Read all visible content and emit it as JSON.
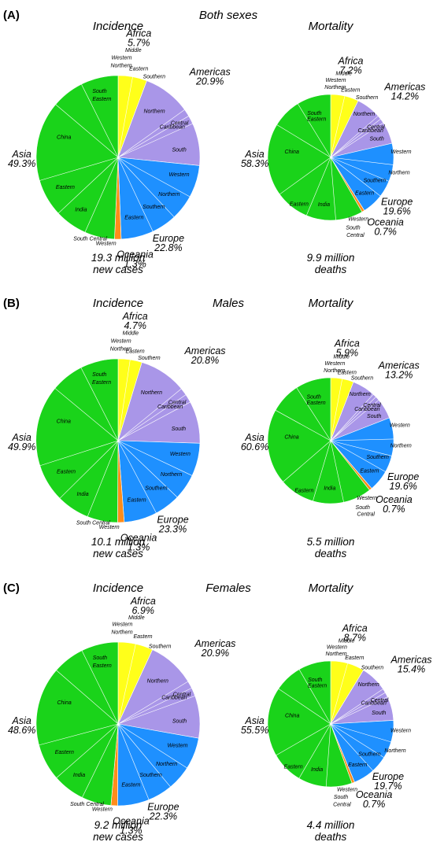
{
  "colors": {
    "Africa": "#ffff1a",
    "Americas": "#a996e8",
    "Europe": "#1e90ff",
    "Oceania": "#ff8c1a",
    "Asia": "#1ad31a"
  },
  "panels": [
    {
      "letter": "(A)",
      "title": "Both sexes"
    },
    {
      "letter": "(B)",
      "title": "Males"
    },
    {
      "letter": "(C)",
      "title": "Females"
    }
  ],
  "side_titles": {
    "incidence": "Incidence",
    "mortality": "Mortality"
  },
  "chart_data": [
    {
      "type": "pie",
      "panel": 0,
      "side": "incidence",
      "title": "Incidence",
      "total": [
        "19.3 million",
        "new cases"
      ],
      "slices": [
        {
          "region": "Africa",
          "value": 5.7
        },
        {
          "region": "Americas",
          "value": 20.9
        },
        {
          "region": "Europe",
          "value": 22.8
        },
        {
          "region": "Oceania",
          "value": 1.3
        },
        {
          "region": "Asia",
          "value": 49.3
        }
      ],
      "region_labels": [
        {
          "region": "Africa",
          "name": "Africa",
          "pct": "5.7%"
        },
        {
          "region": "Americas",
          "name": "Americas",
          "pct": "20.9%"
        },
        {
          "region": "Europe",
          "name": "Europe",
          "pct": "22.8%"
        },
        {
          "region": "Oceania",
          "name": "Oceania",
          "pct": "1.3%"
        },
        {
          "region": "Asia",
          "name": "Asia",
          "pct": "49.3%"
        }
      ],
      "subregions": [
        "Eastern",
        "Southern",
        "Northern",
        "Central",
        "Caribbean",
        "South",
        "Western",
        "Northern",
        "Southern",
        "Eastern",
        "Western",
        "South Central",
        "India",
        "Eastern",
        "China",
        "South",
        "Eastern",
        "Western",
        "Northern",
        "Middle"
      ]
    },
    {
      "type": "pie",
      "panel": 0,
      "side": "mortality",
      "title": "Mortality",
      "total": [
        "9.9 million",
        "deaths"
      ],
      "slices": [
        {
          "region": "Africa",
          "value": 7.2
        },
        {
          "region": "Americas",
          "value": 14.2
        },
        {
          "region": "Europe",
          "value": 19.6
        },
        {
          "region": "Oceania",
          "value": 0.7
        },
        {
          "region": "Asia",
          "value": 58.3
        }
      ],
      "region_labels": [
        {
          "region": "Africa",
          "name": "Africa",
          "pct": "7.2%"
        },
        {
          "region": "Americas",
          "name": "Americas",
          "pct": "14.2%"
        },
        {
          "region": "Europe",
          "name": "Europe",
          "pct": "19.6%"
        },
        {
          "region": "Oceania",
          "name": "Oceania",
          "pct": "0.7%"
        },
        {
          "region": "Asia",
          "name": "Asia",
          "pct": "58.3%"
        }
      ],
      "subregions": [
        "Eastern",
        "Southern",
        "Northern",
        "Central",
        "Caribbean",
        "South",
        "Western",
        "Northern",
        "Southern",
        "Eastern",
        "Western",
        "South",
        "Central",
        "India",
        "Eastern",
        "China",
        "South",
        "Eastern",
        "Western",
        "Northern",
        "Middle"
      ]
    },
    {
      "type": "pie",
      "panel": 1,
      "side": "incidence",
      "title": "Incidence",
      "total": [
        "10.1 million",
        "new cases"
      ],
      "slices": [
        {
          "region": "Africa",
          "value": 4.7
        },
        {
          "region": "Americas",
          "value": 20.8
        },
        {
          "region": "Europe",
          "value": 23.3
        },
        {
          "region": "Oceania",
          "value": 1.3
        },
        {
          "region": "Asia",
          "value": 49.9
        }
      ],
      "region_labels": [
        {
          "region": "Africa",
          "name": "Africa",
          "pct": "4.7%"
        },
        {
          "region": "Americas",
          "name": "Americas",
          "pct": "20.8%"
        },
        {
          "region": "Europe",
          "name": "Europe",
          "pct": "23.3%"
        },
        {
          "region": "Oceania",
          "name": "Oceania",
          "pct": "1.3%"
        },
        {
          "region": "Asia",
          "name": "Asia",
          "pct": "49.9%"
        }
      ],
      "subregions": [
        "Eastern",
        "Southern",
        "Northern",
        "Central",
        "Caribbean",
        "South",
        "Western",
        "Northern",
        "Southern",
        "Eastern",
        "Western",
        "South Central",
        "India",
        "Eastern",
        "China",
        "South",
        "Eastern",
        "Western",
        "Northern",
        "Middle"
      ]
    },
    {
      "type": "pie",
      "panel": 1,
      "side": "mortality",
      "title": "Mortality",
      "total": [
        "5.5 million",
        "deaths"
      ],
      "slices": [
        {
          "region": "Africa",
          "value": 5.9
        },
        {
          "region": "Americas",
          "value": 13.2
        },
        {
          "region": "Europe",
          "value": 19.6
        },
        {
          "region": "Oceania",
          "value": 0.7
        },
        {
          "region": "Asia",
          "value": 60.6
        }
      ],
      "region_labels": [
        {
          "region": "Africa",
          "name": "Africa",
          "pct": "5.9%"
        },
        {
          "region": "Americas",
          "name": "Americas",
          "pct": "13.2%"
        },
        {
          "region": "Europe",
          "name": "Europe",
          "pct": "19.6%"
        },
        {
          "region": "Oceania",
          "name": "Oceania",
          "pct": "0.7%"
        },
        {
          "region": "Asia",
          "name": "Asia",
          "pct": "60.6%"
        }
      ],
      "subregions": [
        "Eastern",
        "Southern",
        "Northern",
        "Central",
        "Caribbean",
        "South",
        "Western",
        "Northern",
        "Southern",
        "Eastern",
        "Western",
        "South",
        "Central",
        "India",
        "Eastern",
        "China",
        "South",
        "Eastern",
        "Western",
        "Northern",
        "Middle"
      ]
    },
    {
      "type": "pie",
      "panel": 2,
      "side": "incidence",
      "title": "Incidence",
      "total": [
        "9.2 million",
        "new cases"
      ],
      "slices": [
        {
          "region": "Africa",
          "value": 6.9
        },
        {
          "region": "Americas",
          "value": 20.9
        },
        {
          "region": "Europe",
          "value": 22.3
        },
        {
          "region": "Oceania",
          "value": 1.3
        },
        {
          "region": "Asia",
          "value": 48.6
        }
      ],
      "region_labels": [
        {
          "region": "Africa",
          "name": "Africa",
          "pct": "6.9%"
        },
        {
          "region": "Americas",
          "name": "Americas",
          "pct": "20.9%"
        },
        {
          "region": "Europe",
          "name": "Europe",
          "pct": "22.3%"
        },
        {
          "region": "Oceania",
          "name": "Oceania",
          "pct": "1.3%"
        },
        {
          "region": "Asia",
          "name": "Asia",
          "pct": "48.6%"
        }
      ],
      "subregions": [
        "Eastern",
        "Southern",
        "Northern",
        "Central",
        "Caribbean",
        "South",
        "Western",
        "Northern",
        "Southern",
        "Eastern",
        "Western",
        "South Central",
        "India",
        "Eastern",
        "China",
        "South",
        "Eastern",
        "Western",
        "Northern",
        "Middle"
      ]
    },
    {
      "type": "pie",
      "panel": 2,
      "side": "mortality",
      "title": "Mortality",
      "total": [
        "4.4 million",
        "deaths"
      ],
      "slices": [
        {
          "region": "Africa",
          "value": 8.7
        },
        {
          "region": "Americas",
          "value": 15.4
        },
        {
          "region": "Europe",
          "value": 19.7
        },
        {
          "region": "Oceania",
          "value": 0.7
        },
        {
          "region": "Asia",
          "value": 55.5
        }
      ],
      "region_labels": [
        {
          "region": "Africa",
          "name": "Africa",
          "pct": "8.7%"
        },
        {
          "region": "Americas",
          "name": "Americas",
          "pct": "15.4%"
        },
        {
          "region": "Europe",
          "name": "Europe",
          "pct": "19.7%"
        },
        {
          "region": "Oceania",
          "name": "Oceania",
          "pct": "0.7%"
        },
        {
          "region": "Asia",
          "name": "Asia",
          "pct": "55.5%"
        }
      ],
      "subregions": [
        "Eastern",
        "Southern",
        "Northern",
        "Central",
        "Caribbean",
        "South",
        "Western",
        "Northern",
        "Southern",
        "Eastern",
        "Western",
        "South",
        "Central",
        "India",
        "Eastern",
        "China",
        "South",
        "Eastern",
        "Western",
        "Northern",
        "Middle"
      ]
    }
  ]
}
